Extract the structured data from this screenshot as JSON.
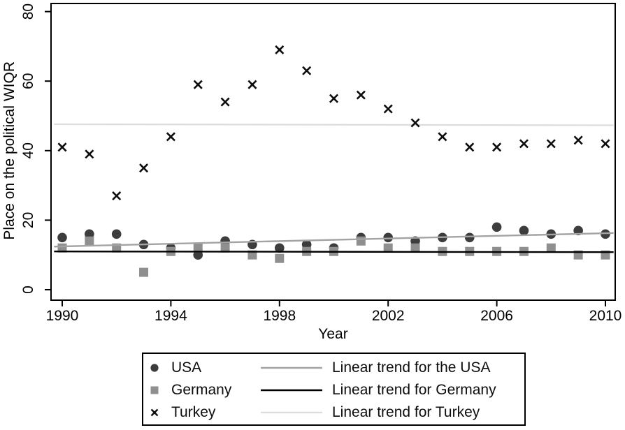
{
  "figure": {
    "background": "#ffffff",
    "border_color": "#000000",
    "text_color": "#000000"
  },
  "chart_data": {
    "type": "scatter",
    "title": "",
    "xlabel": "Year",
    "ylabel": "Place on the political WIQR",
    "x_ticks": [
      1990,
      1994,
      1998,
      2002,
      2006,
      2010
    ],
    "y_ticks": [
      0,
      20,
      40,
      60,
      80
    ],
    "xlim": [
      1989.6,
      2010.4
    ],
    "ylim": [
      -3,
      82
    ],
    "grid": "off",
    "legend_position": "bottom-center",
    "x": [
      1990,
      1991,
      1992,
      1993,
      1994,
      1995,
      1996,
      1997,
      1998,
      1999,
      2000,
      2001,
      2002,
      2003,
      2004,
      2005,
      2006,
      2007,
      2008,
      2009,
      2010
    ],
    "series": [
      {
        "name": "USA",
        "marker": "circle-icon",
        "color": "#3d3d3d",
        "values": [
          15,
          16,
          16,
          13,
          12,
          10,
          14,
          13,
          12,
          13,
          12,
          15,
          15,
          14,
          15,
          15,
          18,
          17,
          16,
          17,
          16
        ]
      },
      {
        "name": "Germany",
        "marker": "square-icon",
        "color": "#8f8f8f",
        "values": [
          12,
          14,
          12,
          5,
          11,
          12,
          12,
          10,
          9,
          11,
          11,
          14,
          12,
          12,
          11,
          11,
          11,
          11,
          12,
          10,
          10
        ]
      },
      {
        "name": "Turkey",
        "marker": "x-icon",
        "color": "#0d0d0d",
        "values": [
          41,
          39,
          27,
          35,
          44,
          59,
          54,
          59,
          69,
          63,
          55,
          56,
          52,
          48,
          44,
          41,
          41,
          42,
          42,
          43,
          42
        ]
      }
    ],
    "trend_lines": [
      {
        "name": "Linear trend for the USA",
        "color": "#a3a3a3",
        "width": 2.4,
        "x1": 1989.7,
        "v1": 12.4,
        "x2": 2010.3,
        "v2": 16.3
      },
      {
        "name": "Linear trend for Germany",
        "color": "#000000",
        "width": 2.4,
        "x1": 1989.7,
        "v1": 11.0,
        "x2": 2010.3,
        "v2": 10.8
      },
      {
        "name": "Linear trend for Turkey",
        "color": "#dcdcdc",
        "width": 2.2,
        "x1": 1989.7,
        "v1": 47.6,
        "x2": 2010.3,
        "v2": 47.3
      }
    ]
  }
}
